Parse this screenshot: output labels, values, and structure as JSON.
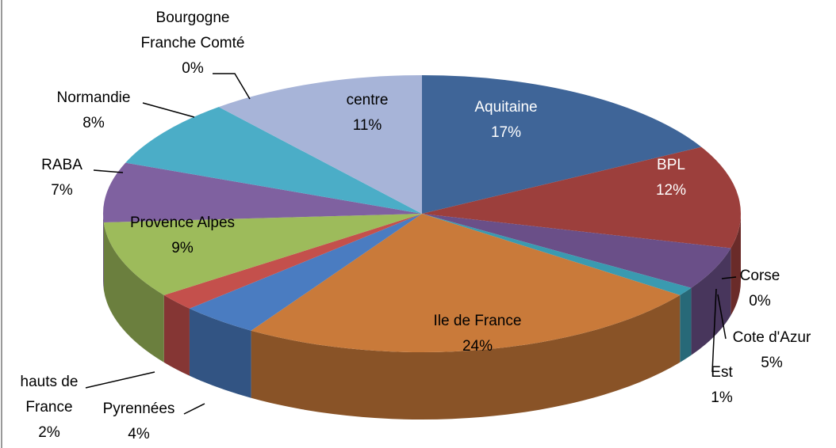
{
  "chart_data": {
    "type": "pie",
    "categories": [
      "Aquitaine",
      "BPL",
      "Cote d'Azur",
      "Est",
      "Corse",
      "Ile de France",
      "Pyrennées",
      "hauts de France",
      "Provence Alpes",
      "RABA",
      "Normandie",
      "Bourgogne Franche Comté",
      "centre"
    ],
    "values": [
      17,
      12,
      5,
      1,
      0,
      24,
      4,
      2,
      9,
      7,
      8,
      0,
      11
    ],
    "value_labels": [
      "17%",
      "12%",
      "5%",
      "1%",
      "0%",
      "24%",
      "4%",
      "2%",
      "9%",
      "7%",
      "8%",
      "0%",
      "11%"
    ],
    "colors": [
      "#3f6598",
      "#9c3f3c",
      "#6a4f88",
      "#3a9ab0",
      "#2a2440",
      "#c97a3a",
      "#4a7cc1",
      "#c4504c",
      "#9dbb5b",
      "#7f61a0",
      "#4badc7",
      "#f79646",
      "#a7b4d8"
    ],
    "three_d": true
  }
}
